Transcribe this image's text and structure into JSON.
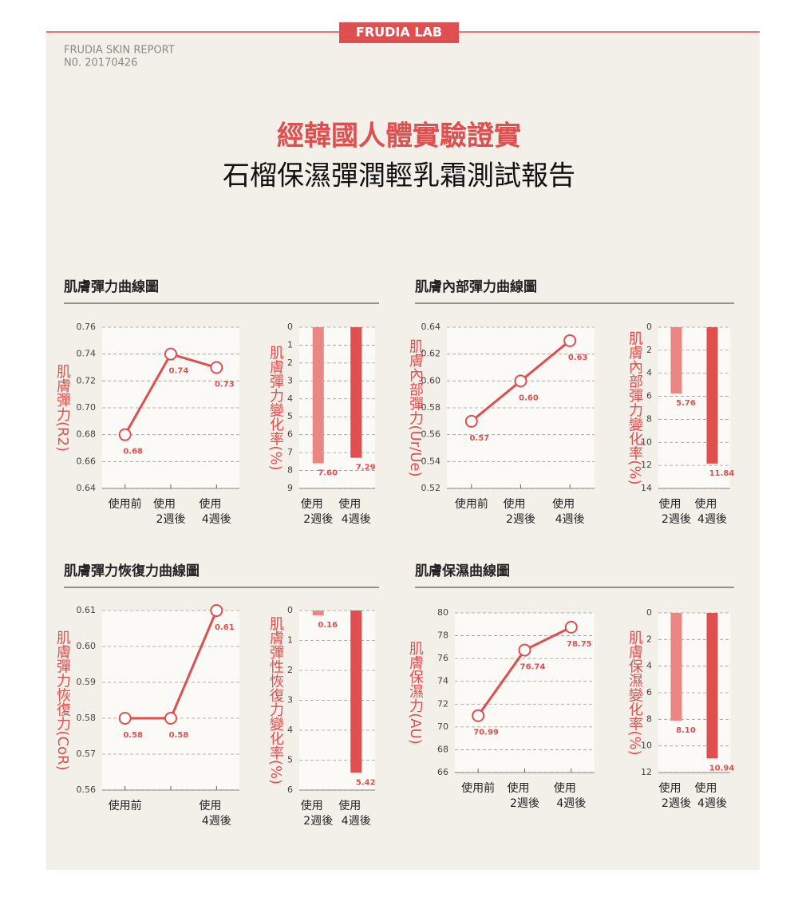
{
  "header": {
    "badge": "FRUDIA LAB",
    "report": "FRUDIA SKIN REPORT",
    "number": "N0. 20170426",
    "title": "經韓國人體實驗證實",
    "subtitle": "石榴保濕彈潤輕乳霜測試報告"
  },
  "chart_data": [
    {
      "type": "line",
      "title": "肌膚彈力曲線圖",
      "ylabel": "肌膚彈力(R2)",
      "categories": [
        "使用前",
        [
          "使用",
          "2週後"
        ],
        [
          "使用",
          "4週後"
        ]
      ],
      "values": [
        0.68,
        0.74,
        0.73
      ],
      "color": "#df4f4f",
      "ylim": [
        0.64,
        0.76
      ],
      "yticks": [
        0.64,
        0.66,
        0.68,
        {
          "value": 0.7,
          "label": "0.70"
        },
        0.72,
        0.74,
        0.76
      ],
      "grid": true
    },
    {
      "type": "bar",
      "ylabel": "肌膚彈力變化率(%)",
      "categories": [
        [
          "使用",
          "2週後"
        ],
        [
          "使用",
          "4週後"
        ]
      ],
      "values": [
        7.6,
        7.29
      ],
      "value_labels": [
        "7.60",
        "7.29"
      ],
      "colors": [
        "#ea8782",
        "#df4f4f"
      ],
      "ylim": [
        0,
        9
      ],
      "yticks": [
        0,
        1,
        2,
        3,
        4,
        5,
        6,
        7,
        8,
        9
      ],
      "y_inverted": true,
      "grid": true
    },
    {
      "type": "line",
      "title": "肌膚內部彈力曲線圖",
      "ylabel": "肌膚內部彈力(Ur/Ue)",
      "categories": [
        "使用前",
        [
          "使用",
          "2週後"
        ],
        [
          "使用",
          "4週後"
        ]
      ],
      "values": [
        0.57,
        0.6,
        0.63
      ],
      "value_labels": [
        "0.57",
        "0.60",
        "0.63"
      ],
      "color": "#df4f4f",
      "ylim": [
        0.52,
        0.64
      ],
      "yticks": [
        0.52,
        0.54,
        0.56,
        0.58,
        {
          "value": 0.6,
          "label": "0.60"
        },
        0.62,
        0.64
      ],
      "grid": true
    },
    {
      "type": "bar",
      "ylabel": "肌膚內部彈力變化率(%)",
      "categories": [
        [
          "使用",
          "2週後"
        ],
        [
          "使用",
          "4週後"
        ]
      ],
      "values": [
        5.76,
        11.84
      ],
      "colors": [
        "#ea8782",
        "#df4f4f"
      ],
      "ylim": [
        0,
        14
      ],
      "yticks": [
        0,
        2,
        4,
        6,
        8,
        10,
        12,
        14
      ],
      "y_inverted": true,
      "grid": true
    },
    {
      "type": "line",
      "title": "肌膚彈力恢復力曲線圖",
      "ylabel": "肌膚彈力恢復力(CoR)",
      "categories": [
        "使用前",
        null,
        [
          "使用",
          "4週後"
        ]
      ],
      "values": [
        0.58,
        0.58,
        0.61
      ],
      "color": "#df4f4f",
      "ylim": [
        0.56,
        0.61
      ],
      "yticks": [
        0.56,
        0.57,
        0.58,
        0.59,
        {
          "value": 0.6,
          "label": "0.60"
        },
        0.61
      ],
      "grid": true
    },
    {
      "type": "bar",
      "ylabel": "肌膚彈性恢復力變化率(%)",
      "categories": [
        [
          "使用",
          "2週後"
        ],
        [
          "使用",
          "4週後"
        ]
      ],
      "values": [
        0.16,
        5.42
      ],
      "colors": [
        "#ea8782",
        "#df4f4f"
      ],
      "ylim": [
        0,
        6
      ],
      "yticks": [
        0,
        1,
        2,
        3,
        4,
        5,
        6
      ],
      "y_inverted": true,
      "grid": true
    },
    {
      "type": "line",
      "title": "肌膚保濕曲線圖",
      "ylabel": "肌膚保濕力(AU)",
      "categories": [
        "使用前",
        [
          "使用",
          "2週後"
        ],
        [
          "使用",
          "4週後"
        ]
      ],
      "values": [
        70.99,
        76.74,
        78.75
      ],
      "color": "#df4f4f",
      "ylim": [
        66,
        80
      ],
      "yticks": [
        66,
        68,
        70,
        72,
        74,
        76,
        78,
        80
      ],
      "grid": true
    },
    {
      "type": "bar",
      "ylabel": "肌膚保濕變化率(%)",
      "categories": [
        [
          "使用",
          "2週後"
        ],
        [
          "使用",
          "4週後"
        ]
      ],
      "values": [
        8.1,
        10.94
      ],
      "value_labels": [
        "8.10",
        "10.94"
      ],
      "colors": [
        "#ea8782",
        "#df4f4f"
      ],
      "ylim": [
        0,
        12
      ],
      "yticks": [
        0,
        2,
        4,
        6,
        8,
        10,
        12
      ],
      "y_inverted": true,
      "grid": true
    }
  ]
}
